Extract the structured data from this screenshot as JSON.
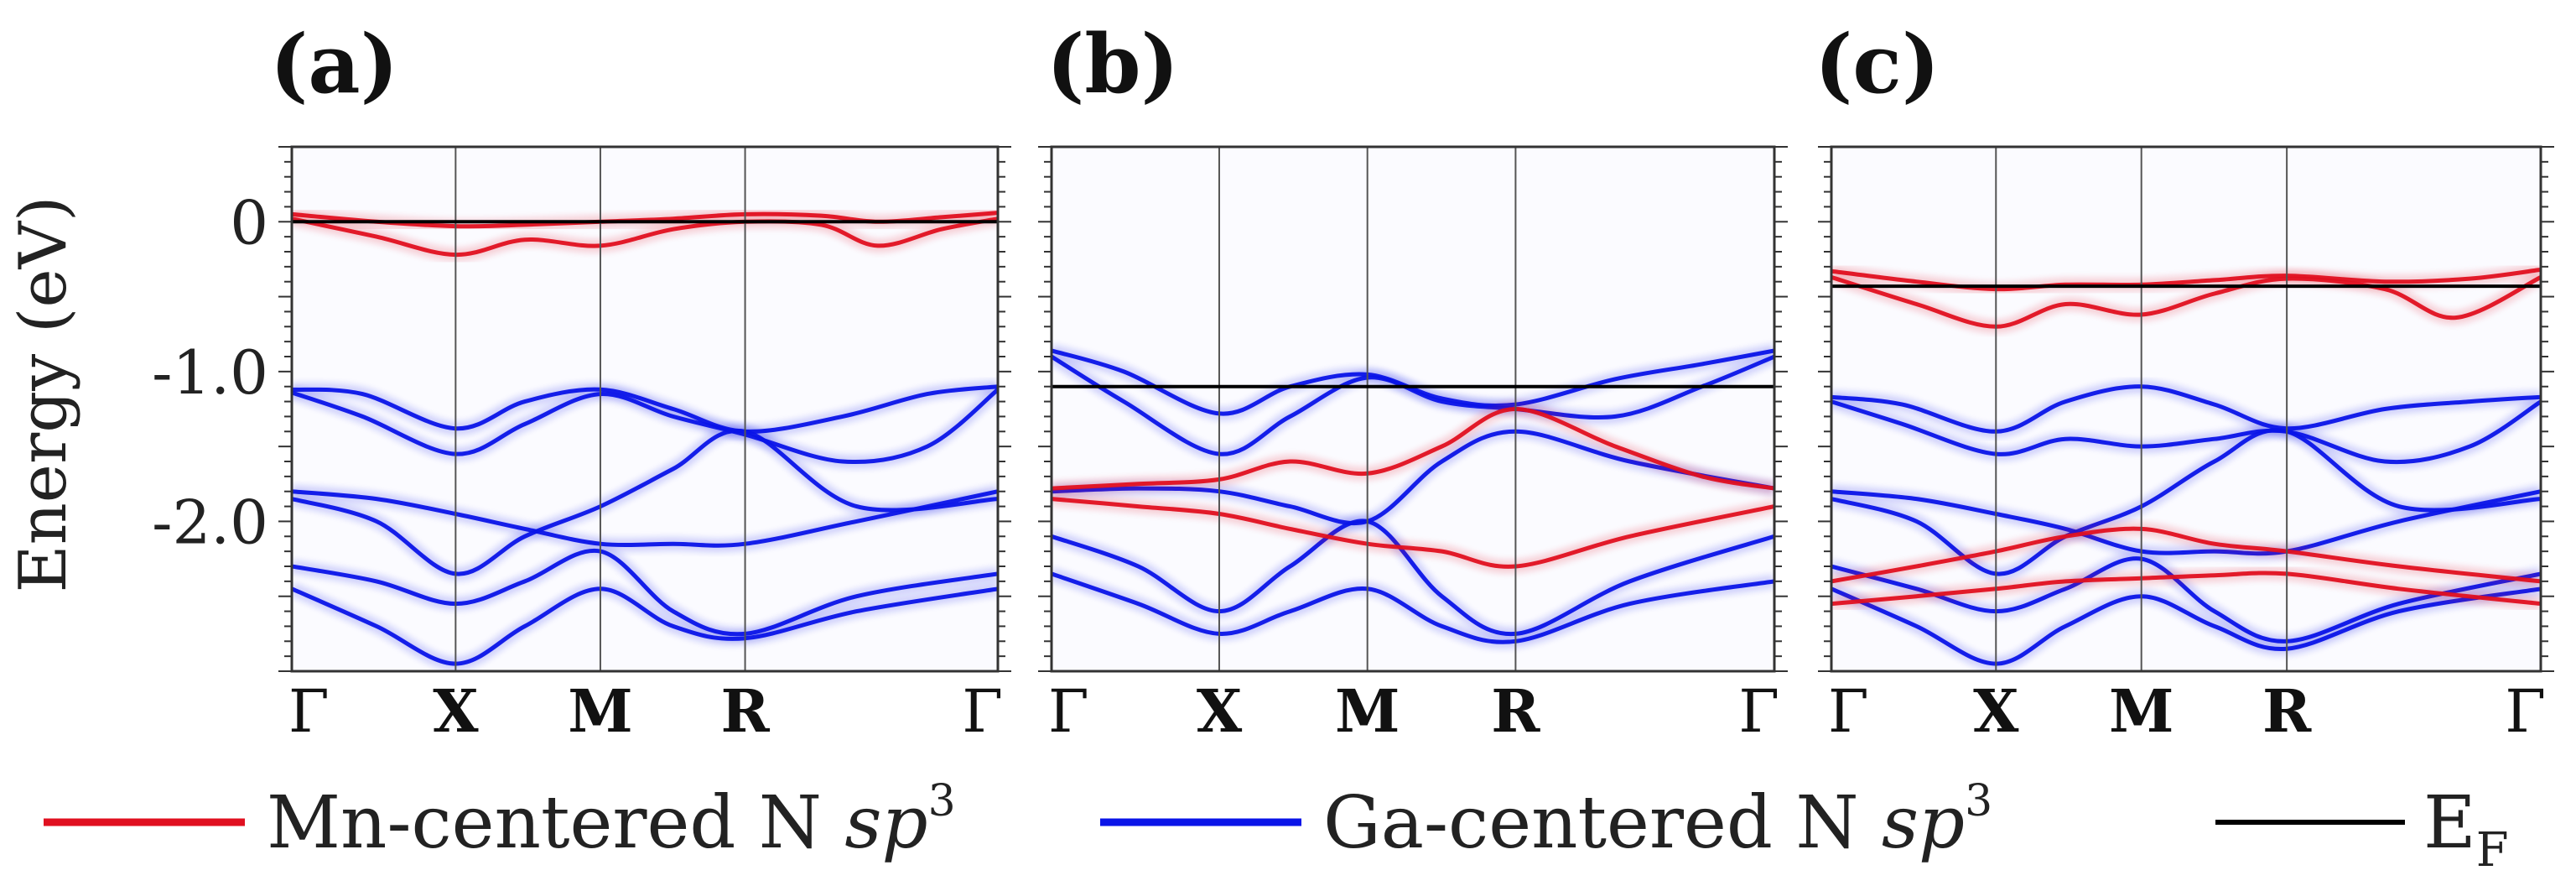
{
  "chart_data": [
    {
      "type": "line",
      "panel_label": "(a)",
      "ylabel": "Energy (eV)",
      "ylim": [
        -3.0,
        0.5
      ],
      "y_tick_values": [
        0,
        -1.0,
        -2.0
      ],
      "y_tick_labels": [
        "0",
        "-1.0",
        "-2.0"
      ],
      "k_points": [
        "Γ",
        "X",
        "M",
        "R",
        "Γ"
      ],
      "k_positions": [
        0,
        0.232,
        0.437,
        0.642,
        1.0
      ],
      "fermi_level": 0.0,
      "series": [
        {
          "name": "Mn-centered N sp3",
          "color": "#e01020",
          "bands": [
            {
              "x": [
                0,
                0.12,
                0.232,
                0.33,
                0.437,
                0.54,
                0.642,
                0.75,
                0.83,
                0.92,
                1.0
              ],
              "y": [
                0.05,
                0.0,
                -0.03,
                -0.02,
                0.0,
                0.02,
                0.05,
                0.04,
                0.0,
                0.03,
                0.06
              ]
            },
            {
              "x": [
                0,
                0.12,
                0.232,
                0.33,
                0.437,
                0.54,
                0.642,
                0.75,
                0.83,
                0.92,
                1.0
              ],
              "y": [
                0.02,
                -0.1,
                -0.22,
                -0.12,
                -0.16,
                -0.05,
                0.0,
                -0.02,
                -0.16,
                -0.05,
                0.02
              ]
            }
          ]
        },
        {
          "name": "Ga-centered N sp3",
          "color": "#0a14e8",
          "bands": [
            {
              "x": [
                0,
                0.1,
                0.232,
                0.33,
                0.437,
                0.54,
                0.642,
                0.78,
                0.9,
                1.0
              ],
              "y": [
                -1.12,
                -1.15,
                -1.38,
                -1.2,
                -1.12,
                -1.25,
                -1.4,
                -1.3,
                -1.15,
                -1.1
              ]
            },
            {
              "x": [
                0,
                0.1,
                0.232,
                0.33,
                0.437,
                0.54,
                0.642,
                0.78,
                0.9,
                1.0
              ],
              "y": [
                -1.14,
                -1.3,
                -1.55,
                -1.35,
                -1.15,
                -1.3,
                -1.42,
                -1.6,
                -1.5,
                -1.12
              ]
            },
            {
              "x": [
                0,
                0.12,
                0.232,
                0.33,
                0.437,
                0.54,
                0.642,
                0.8,
                1.0
              ],
              "y": [
                -1.8,
                -1.85,
                -1.95,
                -2.05,
                -2.15,
                -2.15,
                -2.15,
                -2.0,
                -1.8
              ]
            },
            {
              "x": [
                0,
                0.12,
                0.232,
                0.33,
                0.437,
                0.54,
                0.642,
                0.8,
                1.0
              ],
              "y": [
                -1.85,
                -2.0,
                -2.35,
                -2.1,
                -1.9,
                -1.65,
                -1.4,
                -1.9,
                -1.85
              ]
            },
            {
              "x": [
                0,
                0.12,
                0.232,
                0.33,
                0.437,
                0.54,
                0.642,
                0.8,
                1.0
              ],
              "y": [
                -2.3,
                -2.4,
                -2.55,
                -2.4,
                -2.2,
                -2.6,
                -2.75,
                -2.5,
                -2.35
              ]
            },
            {
              "x": [
                0,
                0.12,
                0.232,
                0.33,
                0.437,
                0.54,
                0.642,
                0.8,
                1.0
              ],
              "y": [
                -2.45,
                -2.7,
                -2.95,
                -2.7,
                -2.45,
                -2.7,
                -2.78,
                -2.6,
                -2.45
              ]
            }
          ]
        }
      ]
    },
    {
      "type": "line",
      "panel_label": "(b)",
      "ylim": [
        -3.0,
        0.5
      ],
      "k_points": [
        "Γ",
        "X",
        "M",
        "R",
        "Γ"
      ],
      "k_positions": [
        0,
        0.232,
        0.437,
        0.642,
        1.0
      ],
      "fermi_level": -1.1,
      "series": [
        {
          "name": "Mn-centered N sp3",
          "color": "#e01020",
          "bands": [
            {
              "x": [
                0,
                0.12,
                0.232,
                0.33,
                0.437,
                0.54,
                0.642,
                0.78,
                0.9,
                1.0
              ],
              "y": [
                -1.78,
                -1.75,
                -1.72,
                -1.6,
                -1.68,
                -1.5,
                -1.25,
                -1.5,
                -1.7,
                -1.78
              ]
            },
            {
              "x": [
                0,
                0.12,
                0.232,
                0.33,
                0.437,
                0.54,
                0.642,
                0.8,
                1.0
              ],
              "y": [
                -1.85,
                -1.9,
                -1.95,
                -2.05,
                -2.15,
                -2.2,
                -2.3,
                -2.1,
                -1.9
              ]
            }
          ]
        },
        {
          "name": "Ga-centered N sp3",
          "color": "#0a14e8",
          "bands": [
            {
              "x": [
                0,
                0.1,
                0.232,
                0.33,
                0.437,
                0.54,
                0.642,
                0.78,
                0.9,
                1.0
              ],
              "y": [
                -0.86,
                -1.0,
                -1.28,
                -1.1,
                -1.02,
                -1.18,
                -1.22,
                -1.05,
                -0.95,
                -0.86
              ]
            },
            {
              "x": [
                0,
                0.1,
                0.232,
                0.33,
                0.437,
                0.54,
                0.642,
                0.78,
                0.9,
                1.0
              ],
              "y": [
                -0.9,
                -1.2,
                -1.55,
                -1.3,
                -1.04,
                -1.2,
                -1.25,
                -1.3,
                -1.1,
                -0.9
              ]
            },
            {
              "x": [
                0,
                0.12,
                0.232,
                0.33,
                0.437,
                0.54,
                0.642,
                0.8,
                1.0
              ],
              "y": [
                -1.8,
                -1.78,
                -1.8,
                -1.9,
                -2.0,
                -1.6,
                -1.4,
                -1.6,
                -1.78
              ]
            },
            {
              "x": [
                0,
                0.12,
                0.232,
                0.33,
                0.437,
                0.54,
                0.642,
                0.8,
                1.0
              ],
              "y": [
                -2.1,
                -2.3,
                -2.6,
                -2.3,
                -2.0,
                -2.5,
                -2.75,
                -2.4,
                -2.1
              ]
            },
            {
              "x": [
                0,
                0.12,
                0.232,
                0.33,
                0.437,
                0.54,
                0.642,
                0.8,
                1.0
              ],
              "y": [
                -2.35,
                -2.55,
                -2.75,
                -2.6,
                -2.45,
                -2.7,
                -2.8,
                -2.55,
                -2.4
              ]
            }
          ]
        }
      ]
    },
    {
      "type": "line",
      "panel_label": "(c)",
      "ylim": [
        -3.0,
        0.5
      ],
      "k_points": [
        "Γ",
        "X",
        "M",
        "R",
        "Γ"
      ],
      "k_positions": [
        0,
        0.232,
        0.437,
        0.642,
        1.0
      ],
      "fermi_level": -0.43,
      "series": [
        {
          "name": "Mn-centered N sp3",
          "color": "#e01020",
          "bands": [
            {
              "x": [
                0,
                0.12,
                0.232,
                0.33,
                0.437,
                0.54,
                0.642,
                0.78,
                0.9,
                1.0
              ],
              "y": [
                -0.33,
                -0.4,
                -0.45,
                -0.42,
                -0.42,
                -0.39,
                -0.36,
                -0.4,
                -0.38,
                -0.32
              ]
            },
            {
              "x": [
                0,
                0.12,
                0.232,
                0.33,
                0.437,
                0.54,
                0.642,
                0.78,
                0.88,
                1.0
              ],
              "y": [
                -0.37,
                -0.55,
                -0.7,
                -0.55,
                -0.62,
                -0.48,
                -0.38,
                -0.45,
                -0.64,
                -0.37
              ]
            },
            {
              "x": [
                0,
                0.12,
                0.232,
                0.33,
                0.437,
                0.54,
                0.642,
                0.8,
                1.0
              ],
              "y": [
                -2.4,
                -2.3,
                -2.2,
                -2.1,
                -2.05,
                -2.15,
                -2.2,
                -2.3,
                -2.4
              ]
            },
            {
              "x": [
                0,
                0.12,
                0.232,
                0.33,
                0.437,
                0.54,
                0.642,
                0.8,
                1.0
              ],
              "y": [
                -2.55,
                -2.5,
                -2.45,
                -2.4,
                -2.38,
                -2.36,
                -2.35,
                -2.45,
                -2.55
              ]
            }
          ]
        },
        {
          "name": "Ga-centered N sp3",
          "color": "#0a14e8",
          "bands": [
            {
              "x": [
                0,
                0.1,
                0.232,
                0.33,
                0.437,
                0.54,
                0.642,
                0.78,
                0.9,
                1.0
              ],
              "y": [
                -1.17,
                -1.22,
                -1.4,
                -1.2,
                -1.1,
                -1.22,
                -1.38,
                -1.25,
                -1.2,
                -1.17
              ]
            },
            {
              "x": [
                0,
                0.1,
                0.232,
                0.33,
                0.437,
                0.54,
                0.642,
                0.78,
                0.9,
                1.0
              ],
              "y": [
                -1.2,
                -1.35,
                -1.55,
                -1.45,
                -1.5,
                -1.45,
                -1.4,
                -1.6,
                -1.5,
                -1.2
              ]
            },
            {
              "x": [
                0,
                0.12,
                0.232,
                0.33,
                0.437,
                0.54,
                0.642,
                0.8,
                1.0
              ],
              "y": [
                -1.8,
                -1.85,
                -1.95,
                -2.05,
                -2.2,
                -2.2,
                -2.2,
                -2.0,
                -1.8
              ]
            },
            {
              "x": [
                0,
                0.12,
                0.232,
                0.33,
                0.437,
                0.54,
                0.642,
                0.8,
                1.0
              ],
              "y": [
                -1.85,
                -2.0,
                -2.35,
                -2.1,
                -1.9,
                -1.6,
                -1.4,
                -1.9,
                -1.85
              ]
            },
            {
              "x": [
                0,
                0.12,
                0.232,
                0.33,
                0.437,
                0.54,
                0.642,
                0.8,
                1.0
              ],
              "y": [
                -2.3,
                -2.45,
                -2.6,
                -2.45,
                -2.25,
                -2.6,
                -2.8,
                -2.55,
                -2.35
              ]
            },
            {
              "x": [
                0,
                0.12,
                0.232,
                0.33,
                0.437,
                0.54,
                0.642,
                0.8,
                1.0
              ],
              "y": [
                -2.45,
                -2.7,
                -2.95,
                -2.7,
                -2.5,
                -2.7,
                -2.85,
                -2.6,
                -2.45
              ]
            }
          ]
        }
      ]
    }
  ],
  "legend": {
    "items": [
      {
        "label": "Mn-centered N ",
        "italic": "sp",
        "sup": "3",
        "color": "#e01020",
        "kind": "line"
      },
      {
        "label": "Ga-centered N ",
        "italic": "sp",
        "sup": "3",
        "color": "#0a14e8",
        "kind": "line"
      },
      {
        "label": "E",
        "sub": "F",
        "color": "#000000",
        "kind": "line"
      }
    ]
  }
}
